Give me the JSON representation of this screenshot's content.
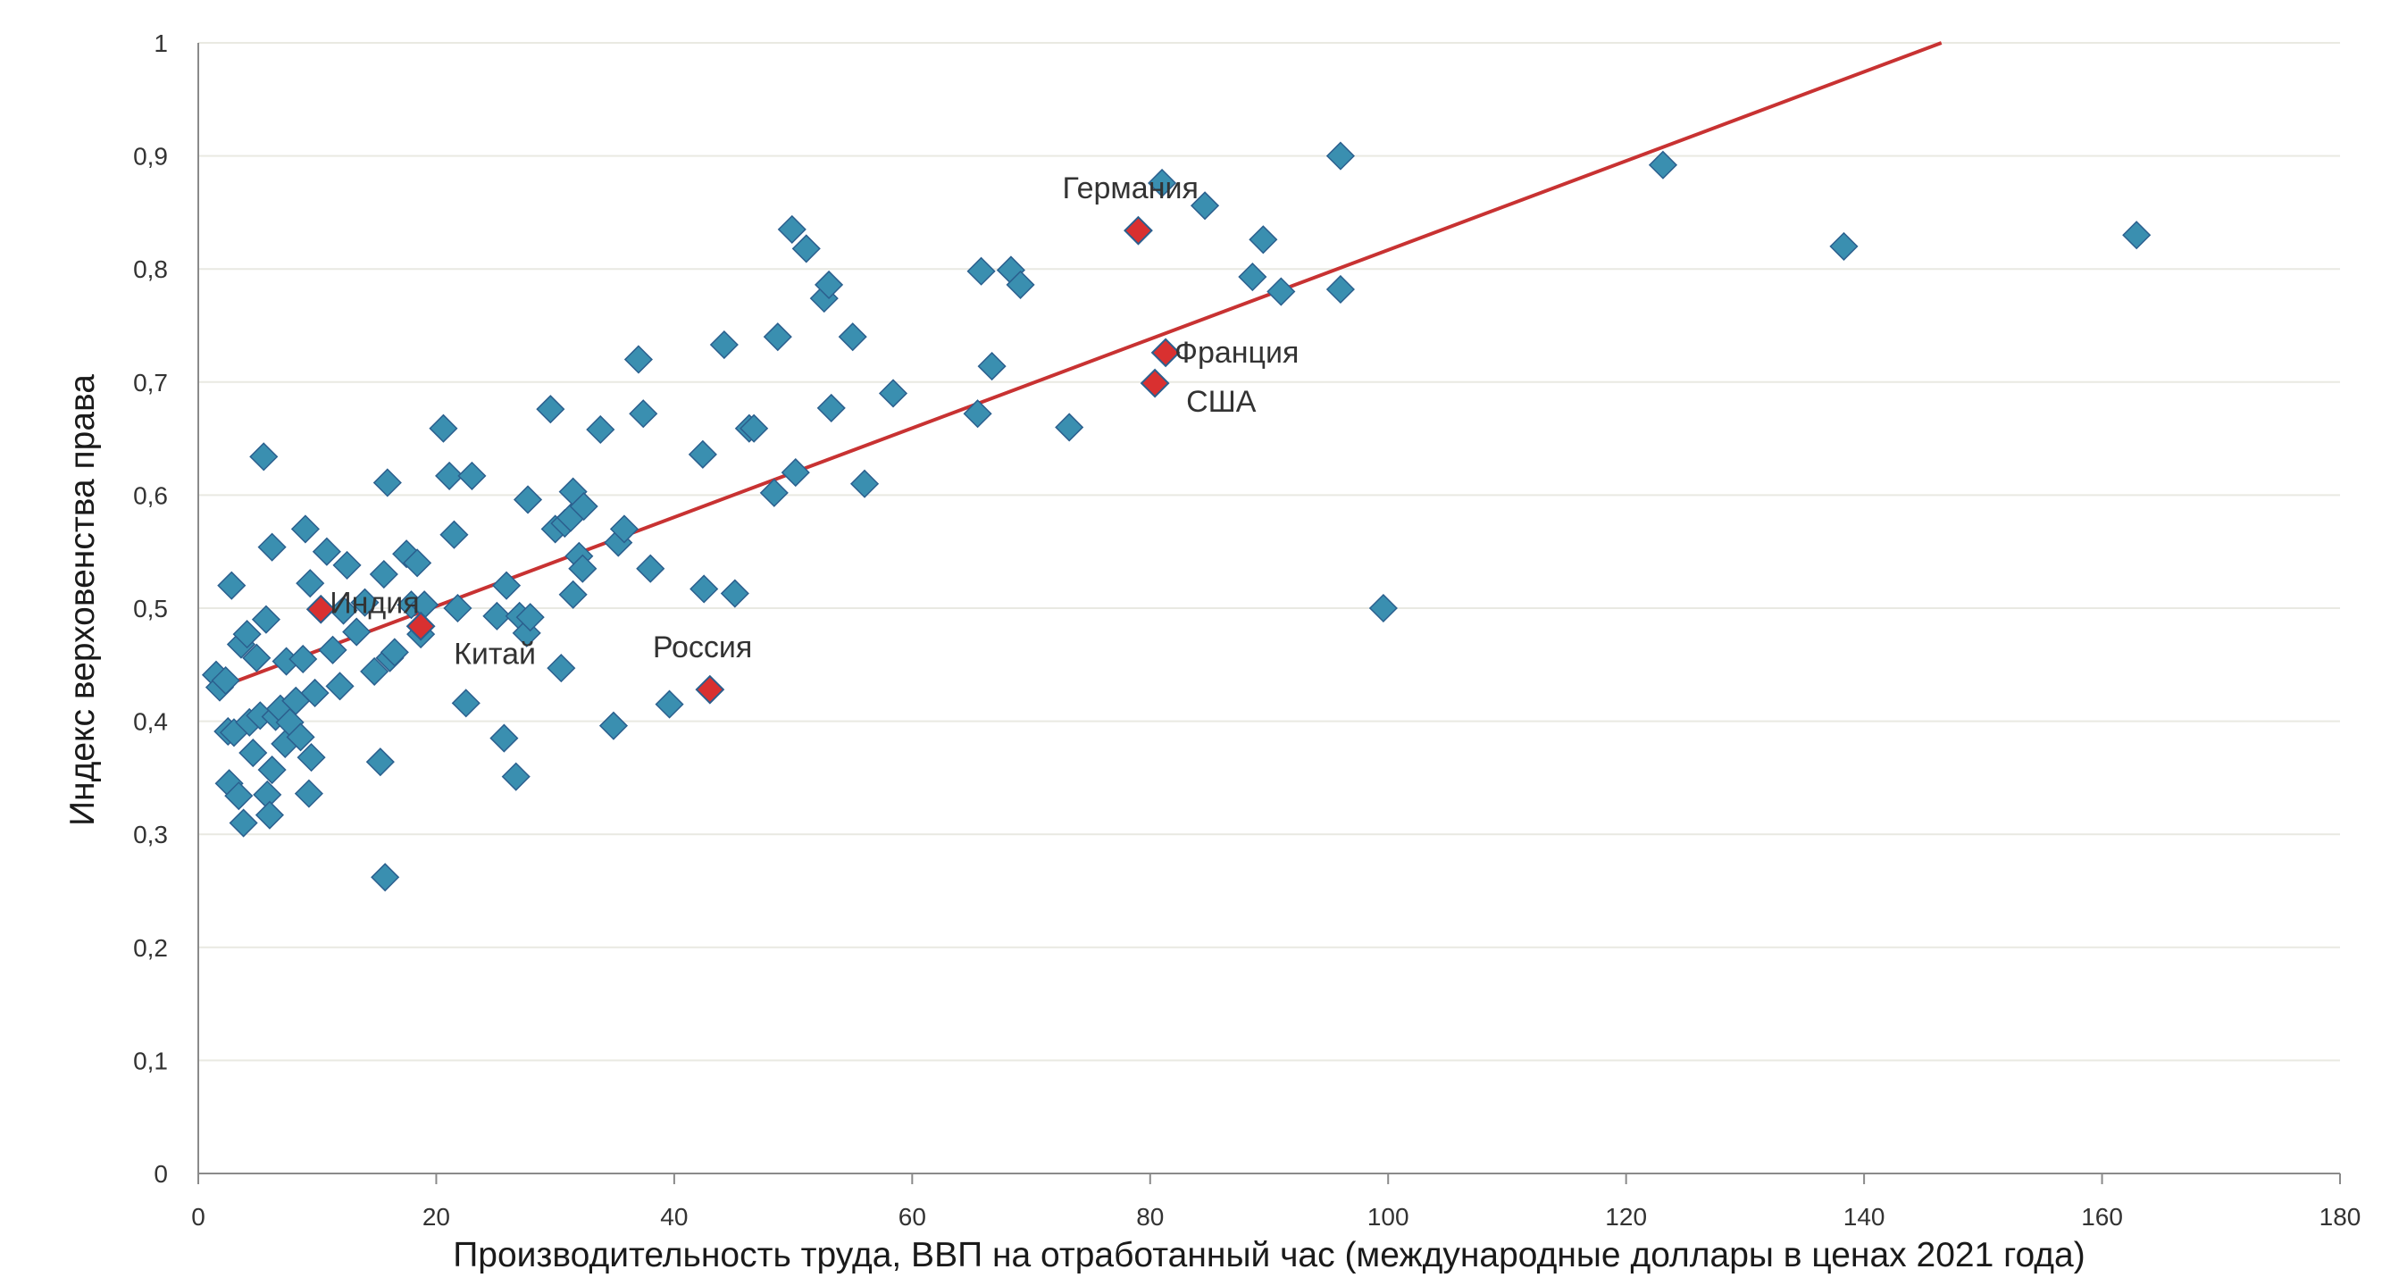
{
  "chart_data": {
    "type": "scatter",
    "title": "",
    "xlabel": "Производительность труда, ВВП на отработанный час (международные доллары в ценах 2021 года)",
    "ylabel": "Индекс верховенства права",
    "xlim": [
      0,
      180
    ],
    "ylim": [
      0,
      1
    ],
    "xticks": [
      "0",
      "20",
      "40",
      "60",
      "80",
      "100",
      "120",
      "140",
      "160",
      "180"
    ],
    "yticks": [
      "0",
      "0,1",
      "0,2",
      "0,3",
      "0,4",
      "0,5",
      "0,6",
      "0,7",
      "0,8",
      "0,9",
      "1"
    ],
    "colors": {
      "points": "#3a8fb0",
      "point_edge": "#2b5f8e",
      "highlight": "#d93030",
      "trend": "#c83232",
      "grid": "#e9e9e2"
    },
    "trendline": {
      "x": [
        1.8,
        146.5
      ],
      "y": [
        0.43,
        1.0
      ]
    },
    "highlighted": [
      {
        "name": "Германия",
        "x": 79.0,
        "y": 0.834
      },
      {
        "name": "Франция",
        "x": 81.3,
        "y": 0.726
      },
      {
        "name": "США",
        "x": 80.4,
        "y": 0.699
      },
      {
        "name": "Индия",
        "x": 10.3,
        "y": 0.499
      },
      {
        "name": "Китай",
        "x": 18.7,
        "y": 0.484
      },
      {
        "name": "Россия",
        "x": 43.0,
        "y": 0.428
      }
    ],
    "points": [
      [
        1.5,
        0.441
      ],
      [
        1.8,
        0.43
      ],
      [
        2.3,
        0.436
      ],
      [
        2.6,
        0.345
      ],
      [
        2.5,
        0.391
      ],
      [
        2.8,
        0.52
      ],
      [
        3.0,
        0.39
      ],
      [
        3.4,
        0.334
      ],
      [
        3.6,
        0.468
      ],
      [
        3.8,
        0.31
      ],
      [
        4.1,
        0.477
      ],
      [
        4.3,
        0.399
      ],
      [
        4.6,
        0.372
      ],
      [
        4.9,
        0.456
      ],
      [
        5.2,
        0.405
      ],
      [
        5.5,
        0.634
      ],
      [
        5.7,
        0.49
      ],
      [
        5.8,
        0.335
      ],
      [
        6.0,
        0.317
      ],
      [
        6.2,
        0.554
      ],
      [
        6.2,
        0.357
      ],
      [
        6.5,
        0.404
      ],
      [
        6.9,
        0.411
      ],
      [
        7.3,
        0.38
      ],
      [
        7.4,
        0.453
      ],
      [
        7.7,
        0.399
      ],
      [
        8.2,
        0.418
      ],
      [
        8.6,
        0.386
      ],
      [
        8.8,
        0.455
      ],
      [
        9.0,
        0.57
      ],
      [
        9.3,
        0.336
      ],
      [
        9.4,
        0.522
      ],
      [
        9.5,
        0.368
      ],
      [
        9.8,
        0.425
      ],
      [
        10.8,
        0.55
      ],
      [
        11.3,
        0.463
      ],
      [
        11.9,
        0.431
      ],
      [
        12.2,
        0.498
      ],
      [
        12.5,
        0.538
      ],
      [
        13.3,
        0.479
      ],
      [
        14.0,
        0.505
      ],
      [
        14.8,
        0.444
      ],
      [
        15.3,
        0.364
      ],
      [
        15.6,
        0.53
      ],
      [
        15.7,
        0.262
      ],
      [
        15.9,
        0.611
      ],
      [
        16.1,
        0.456
      ],
      [
        16.5,
        0.461
      ],
      [
        17.5,
        0.548
      ],
      [
        17.9,
        0.503
      ],
      [
        18.4,
        0.54
      ],
      [
        18.7,
        0.477
      ],
      [
        19.0,
        0.503
      ],
      [
        20.6,
        0.659
      ],
      [
        21.1,
        0.617
      ],
      [
        21.5,
        0.565
      ],
      [
        21.8,
        0.5
      ],
      [
        22.5,
        0.416
      ],
      [
        23.0,
        0.617
      ],
      [
        25.1,
        0.493
      ],
      [
        25.7,
        0.385
      ],
      [
        25.9,
        0.52
      ],
      [
        26.7,
        0.351
      ],
      [
        27.0,
        0.493
      ],
      [
        27.6,
        0.478
      ],
      [
        27.7,
        0.596
      ],
      [
        27.9,
        0.492
      ],
      [
        29.6,
        0.676
      ],
      [
        30.0,
        0.57
      ],
      [
        30.5,
        0.447
      ],
      [
        30.8,
        0.575
      ],
      [
        31.3,
        0.58
      ],
      [
        31.5,
        0.603
      ],
      [
        31.5,
        0.512
      ],
      [
        32.0,
        0.546
      ],
      [
        32.4,
        0.59
      ],
      [
        32.3,
        0.535
      ],
      [
        33.8,
        0.658
      ],
      [
        34.9,
        0.396
      ],
      [
        35.3,
        0.558
      ],
      [
        35.8,
        0.57
      ],
      [
        37.0,
        0.72
      ],
      [
        37.4,
        0.672
      ],
      [
        38.0,
        0.535
      ],
      [
        39.6,
        0.415
      ],
      [
        42.4,
        0.636
      ],
      [
        42.5,
        0.517
      ],
      [
        44.2,
        0.733
      ],
      [
        45.1,
        0.513
      ],
      [
        46.3,
        0.659
      ],
      [
        46.7,
        0.659
      ],
      [
        48.4,
        0.602
      ],
      [
        48.7,
        0.74
      ],
      [
        49.9,
        0.835
      ],
      [
        50.2,
        0.62
      ],
      [
        51.1,
        0.818
      ],
      [
        52.6,
        0.774
      ],
      [
        53.0,
        0.786
      ],
      [
        53.2,
        0.677
      ],
      [
        55.0,
        0.74
      ],
      [
        56.0,
        0.61
      ],
      [
        58.4,
        0.69
      ],
      [
        65.5,
        0.672
      ],
      [
        65.8,
        0.798
      ],
      [
        66.7,
        0.714
      ],
      [
        68.3,
        0.799
      ],
      [
        69.1,
        0.786
      ],
      [
        73.2,
        0.66
      ],
      [
        81.0,
        0.876
      ],
      [
        84.6,
        0.856
      ],
      [
        88.6,
        0.793
      ],
      [
        89.5,
        0.826
      ],
      [
        91.0,
        0.78
      ],
      [
        96.0,
        0.9
      ],
      [
        96.0,
        0.782
      ],
      [
        99.6,
        0.5
      ],
      [
        123.1,
        0.892
      ],
      [
        138.3,
        0.82
      ],
      [
        162.9,
        0.83
      ]
    ]
  }
}
